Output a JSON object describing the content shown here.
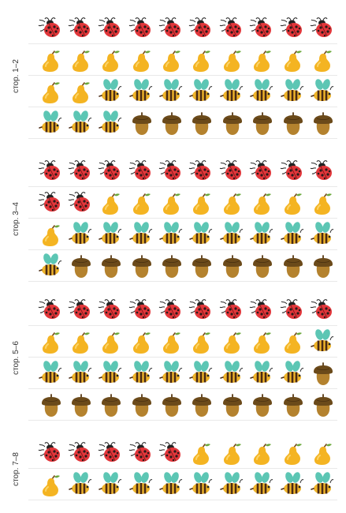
{
  "groups": [
    {
      "label": "стор. 1–2",
      "rows": [
        [
          "ladybug",
          "ladybug",
          "ladybug",
          "ladybug",
          "ladybug",
          "ladybug",
          "ladybug",
          "ladybug",
          "ladybug",
          "ladybug"
        ],
        [
          "pear",
          "pear",
          "pear",
          "pear",
          "pear",
          "pear",
          "pear",
          "pear",
          "pear",
          "pear"
        ],
        [
          "pear",
          "pear",
          "bee",
          "bee",
          "bee",
          "bee",
          "bee",
          "bee",
          "bee",
          "bee"
        ],
        [
          "bee",
          "bee",
          "bee",
          "acorn",
          "acorn",
          "acorn",
          "acorn",
          "acorn",
          "acorn",
          "acorn"
        ]
      ]
    },
    {
      "label": "стор. 3–4",
      "rows": [
        [
          "ladybug",
          "ladybug",
          "ladybug",
          "ladybug",
          "ladybug",
          "ladybug",
          "ladybug",
          "ladybug",
          "ladybug",
          "ladybug"
        ],
        [
          "ladybug",
          "ladybug",
          "pear",
          "pear",
          "pear",
          "pear",
          "pear",
          "pear",
          "pear",
          "pear"
        ],
        [
          "pear",
          "bee",
          "bee",
          "bee",
          "bee",
          "bee",
          "bee",
          "bee",
          "bee",
          "bee"
        ],
        [
          "bee",
          "acorn",
          "acorn",
          "acorn",
          "acorn",
          "acorn",
          "acorn",
          "acorn",
          "acorn",
          "acorn"
        ]
      ]
    },
    {
      "label": "стор. 5–6",
      "rows": [
        [
          "ladybug",
          "ladybug",
          "ladybug",
          "ladybug",
          "ladybug",
          "ladybug",
          "ladybug",
          "ladybug",
          "ladybug",
          "ladybug"
        ],
        [
          "pear",
          "pear",
          "pear",
          "pear",
          "pear",
          "pear",
          "pear",
          "pear",
          "pear",
          "bee"
        ],
        [
          "bee",
          "bee",
          "bee",
          "bee",
          "bee",
          "bee",
          "bee",
          "bee",
          "bee",
          "acorn"
        ],
        [
          "acorn",
          "acorn",
          "acorn",
          "acorn",
          "acorn",
          "acorn",
          "acorn",
          "acorn",
          "acorn",
          "acorn"
        ]
      ]
    },
    {
      "label": "стор. 7–8",
      "rows": [
        [
          "ladybug",
          "ladybug",
          "ladybug",
          "ladybug",
          "ladybug",
          "pear",
          "pear",
          "pear",
          "pear",
          "pear"
        ],
        [
          "pear",
          "bee",
          "bee",
          "bee",
          "bee",
          "bee",
          "bee",
          "bee",
          "bee",
          "bee"
        ]
      ]
    }
  ],
  "colors": {
    "ladybug_shell": "#e2363a",
    "ladybug_spots": "#2a1a1a",
    "pear_body": "#f4b422",
    "pear_highlight": "#fcd468",
    "pear_leaf": "#6aa83a",
    "bee_body": "#f0b52a",
    "bee_stripe": "#4a2a14",
    "bee_wing": "#5cc6b4",
    "acorn_cap": "#6b4a1a",
    "acorn_nut": "#b4822e"
  }
}
